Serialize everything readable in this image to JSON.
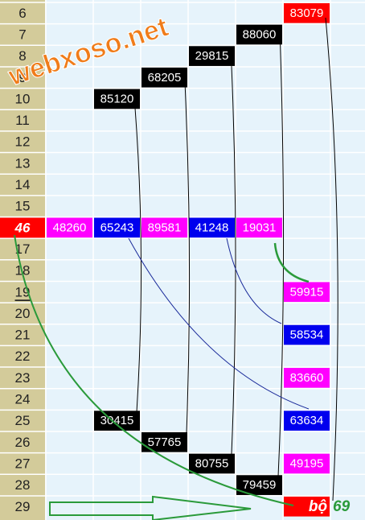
{
  "watermark": "webxoso.net",
  "rows": [
    {
      "label": "6",
      "cells": [
        null,
        null,
        null,
        null,
        null,
        {
          "text": "83079",
          "color": "#ff0000"
        }
      ]
    },
    {
      "label": "7",
      "cells": [
        null,
        null,
        null,
        null,
        {
          "text": "88060",
          "color": "#000000"
        },
        null
      ]
    },
    {
      "label": "8",
      "cells": [
        null,
        null,
        null,
        {
          "text": "29815",
          "color": "#000000"
        },
        null,
        null
      ]
    },
    {
      "label": "9",
      "cells": [
        null,
        null,
        {
          "text": "68205",
          "color": "#000000"
        },
        null,
        null,
        null
      ]
    },
    {
      "label": "10",
      "cells": [
        null,
        {
          "text": "85120",
          "color": "#000000"
        },
        null,
        null,
        null,
        null
      ]
    },
    {
      "label": "11",
      "cells": [
        null,
        null,
        null,
        null,
        null,
        null
      ]
    },
    {
      "label": "12",
      "cells": [
        null,
        null,
        null,
        null,
        null,
        null
      ]
    },
    {
      "label": "13",
      "cells": [
        null,
        null,
        null,
        null,
        null,
        null
      ]
    },
    {
      "label": "14",
      "cells": [
        null,
        null,
        null,
        null,
        null,
        null
      ]
    },
    {
      "label": "15",
      "cells": [
        null,
        null,
        null,
        null,
        null,
        null
      ]
    },
    {
      "label": "46",
      "label_color": "#ff0000",
      "cells": [
        {
          "text": "48260",
          "color": "#ff00ff"
        },
        {
          "text": "65243",
          "color": "#0000ee"
        },
        {
          "text": "89581",
          "color": "#ff00ff"
        },
        {
          "text": "41248",
          "color": "#0000ee"
        },
        {
          "text": "19031",
          "color": "#ff00ff"
        },
        null
      ]
    },
    {
      "label": "17",
      "cells": [
        null,
        null,
        null,
        null,
        null,
        null
      ]
    },
    {
      "label": "18",
      "cells": [
        null,
        null,
        null,
        null,
        null,
        null
      ]
    },
    {
      "label": "19",
      "label_underline": true,
      "cells": [
        null,
        null,
        null,
        null,
        null,
        {
          "text": "59915",
          "color": "#ff00ff"
        }
      ]
    },
    {
      "label": "20",
      "cells": [
        null,
        null,
        null,
        null,
        null,
        null
      ]
    },
    {
      "label": "21",
      "cells": [
        null,
        null,
        null,
        null,
        null,
        {
          "text": "58534",
          "color": "#0000ee"
        }
      ]
    },
    {
      "label": "22",
      "cells": [
        null,
        null,
        null,
        null,
        null,
        null
      ]
    },
    {
      "label": "23",
      "cells": [
        null,
        null,
        null,
        null,
        null,
        {
          "text": "83660",
          "color": "#ff00ff"
        }
      ]
    },
    {
      "label": "24",
      "cells": [
        null,
        null,
        null,
        null,
        null,
        null
      ]
    },
    {
      "label": "25",
      "cells": [
        null,
        {
          "text": "30415",
          "color": "#000000"
        },
        null,
        null,
        null,
        {
          "text": "63634",
          "color": "#0000ee"
        }
      ]
    },
    {
      "label": "26",
      "cells": [
        null,
        null,
        {
          "text": "57765",
          "color": "#000000"
        },
        null,
        null,
        null
      ]
    },
    {
      "label": "27",
      "cells": [
        null,
        null,
        null,
        {
          "text": "80755",
          "color": "#000000"
        },
        null,
        {
          "text": "49195",
          "color": "#ff00ff"
        }
      ]
    },
    {
      "label": "28",
      "cells": [
        null,
        null,
        null,
        null,
        {
          "text": "79459",
          "color": "#000000"
        },
        null
      ]
    },
    {
      "label": "29",
      "note": "69",
      "cells": [
        null,
        null,
        null,
        null,
        null,
        {
          "text": "bộ",
          "color": "#ff0000"
        }
      ]
    }
  ]
}
